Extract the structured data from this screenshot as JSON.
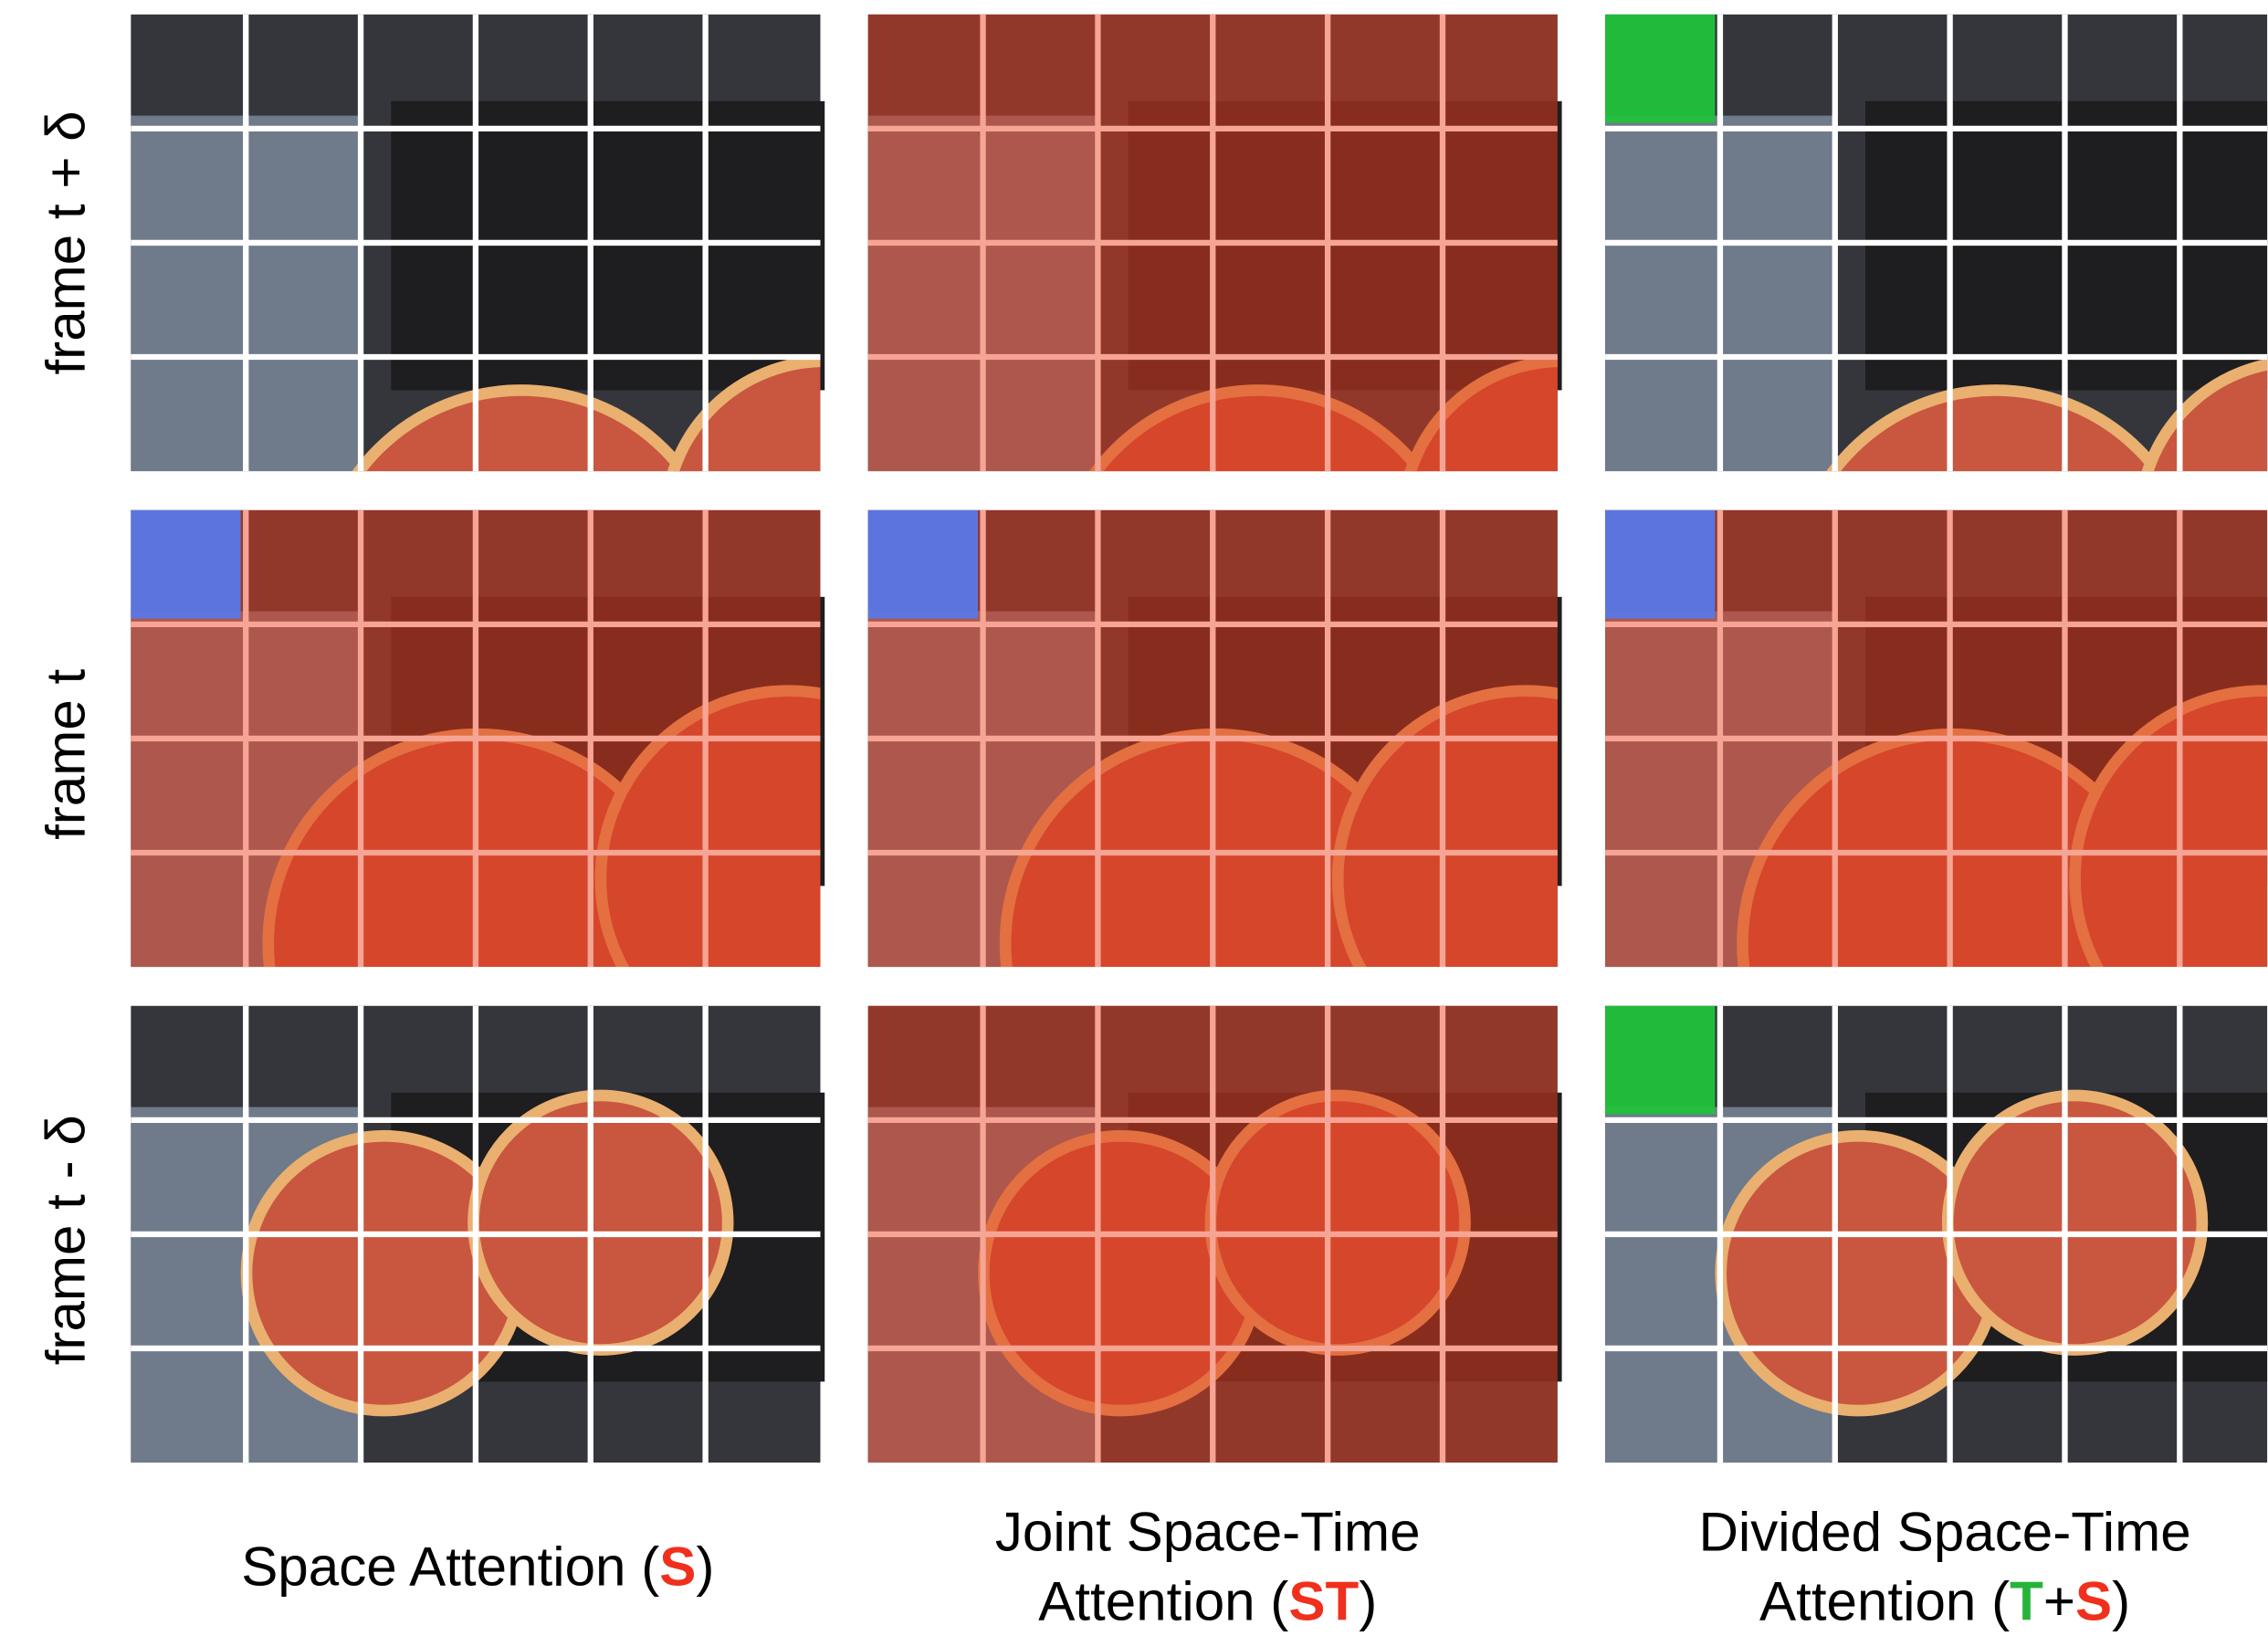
{
  "rows": [
    {
      "label": "frame t + δ"
    },
    {
      "label": "frame t"
    },
    {
      "label": "frame t - δ"
    }
  ],
  "columns": [
    {
      "caption": [
        [
          "Space Attention (",
          "S",
          ")"
        ]
      ]
    },
    {
      "caption": [
        [
          "Joint Space-Time"
        ],
        [
          "Attention (",
          "ST",
          ")"
        ]
      ]
    },
    {
      "caption": [
        [
          "Divided Space-Time"
        ],
        [
          "Attention (",
          "T",
          "+",
          "S",
          ")"
        ]
      ]
    }
  ]
}
